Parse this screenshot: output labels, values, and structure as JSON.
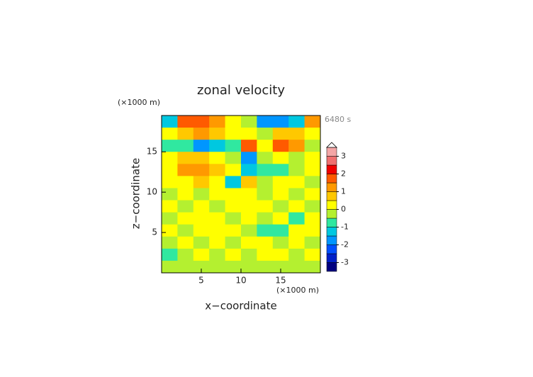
{
  "chart_data": {
    "type": "contour",
    "title": "zonal velocity",
    "x_label": "x−coordinate",
    "y_label": "z−coordinate",
    "x_unit": "(×1000 m)",
    "y_unit": "(×1000 m)",
    "time_label": "6480 s",
    "xlim": [
      0,
      20
    ],
    "ylim": [
      0,
      19.5
    ],
    "xticks": [
      5,
      10,
      15
    ],
    "yticks": [
      5,
      10,
      15
    ],
    "x": [
      1,
      3,
      5,
      7,
      9,
      11,
      13,
      15,
      17,
      19
    ],
    "y": [
      18.75,
      17.25,
      15.75,
      14.25,
      12.75,
      11.25,
      9.75,
      8.25,
      6.75,
      5.25,
      3.75,
      2.25,
      0.75
    ],
    "z": [
      [
        -1.2,
        1.8,
        1.6,
        1.2,
        0.3,
        -0.5,
        -1.6,
        -1.8,
        -1.2,
        1.2
      ],
      [
        0.3,
        0.8,
        1.2,
        0.6,
        0.2,
        0.4,
        -0.3,
        0.6,
        0.9,
        0.4
      ],
      [
        -0.8,
        -1.0,
        -1.8,
        -1.4,
        -0.6,
        1.6,
        0.3,
        1.8,
        1.2,
        -0.3
      ],
      [
        0.2,
        0.6,
        0.9,
        0.4,
        -0.3,
        -1.6,
        -0.4,
        0.2,
        -0.2,
        0.3
      ],
      [
        0.4,
        1.3,
        1.2,
        0.8,
        0.3,
        -1.2,
        -0.9,
        -0.7,
        -0.4,
        0.2
      ],
      [
        0.3,
        0.2,
        0.6,
        0.1,
        -1.2,
        0.6,
        -0.2,
        0.2,
        0.4,
        -0.2
      ],
      [
        -0.3,
        0.2,
        -0.2,
        0.3,
        0.1,
        0.3,
        -0.4,
        0.2,
        -0.3,
        0.3
      ],
      [
        0.2,
        -0.3,
        0.4,
        -0.2,
        0.3,
        0.2,
        0.3,
        -0.3,
        0.2,
        -0.2
      ],
      [
        -0.2,
        0.3,
        0.2,
        0.4,
        -0.3,
        0.2,
        -0.4,
        0.3,
        -0.6,
        0.2
      ],
      [
        0.3,
        -0.2,
        0.3,
        0.2,
        0.3,
        -0.3,
        -0.7,
        -0.6,
        0.3,
        0.2
      ],
      [
        -0.3,
        0.2,
        -0.2,
        0.3,
        -0.2,
        0.3,
        0.2,
        -0.3,
        0.2,
        -0.2
      ],
      [
        -0.6,
        -0.2,
        0.2,
        -0.3,
        0.2,
        -0.2,
        0.3,
        0.2,
        -0.3,
        0.3
      ],
      [
        -0.4,
        -0.3,
        -0.2,
        -0.3,
        -0.4,
        -0.2,
        -0.3,
        -0.2,
        -0.4,
        -0.3
      ]
    ],
    "levels": [
      -3.5,
      -3,
      -2.5,
      -2,
      -1.5,
      -1,
      -0.5,
      0,
      0.5,
      1,
      1.5,
      2,
      2.5,
      3,
      3.5
    ],
    "colors": [
      "#000080",
      "#0020c8",
      "#0050ff",
      "#0096ff",
      "#00c8e0",
      "#30e8a0",
      "#b4f030",
      "#ffff00",
      "#ffc800",
      "#ff9900",
      "#ff5a00",
      "#f00000",
      "#f07070",
      "#f4a6a6"
    ],
    "colorbar_ticks": [
      -3,
      -2,
      -1,
      0,
      1,
      2,
      3
    ]
  }
}
